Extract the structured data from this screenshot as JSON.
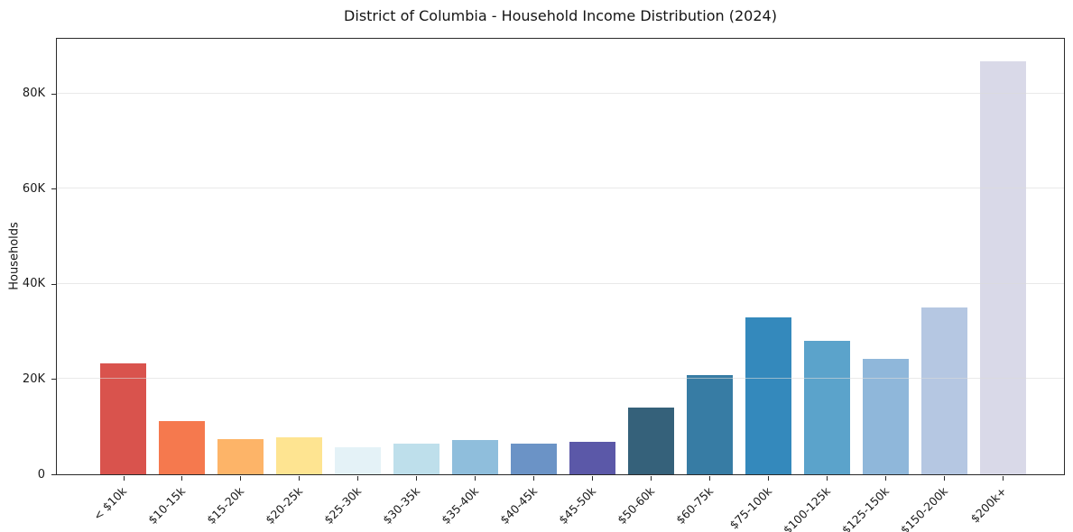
{
  "chart_data": {
    "type": "bar",
    "title": "District of Columbia - Household Income Distribution (2024)",
    "xlabel": "",
    "ylabel": "Households",
    "categories": [
      "< $10k",
      "$10-15k",
      "$15-20k",
      "$20-25k",
      "$25-30k",
      "$30-35k",
      "$35-40k",
      "$40-45k",
      "$45-50k",
      "$50-60k",
      "$60-75k",
      "$75-100k",
      "$100-125k",
      "$125-150k",
      "$150-200k",
      "$200k+"
    ],
    "values": [
      23300,
      11100,
      7400,
      7800,
      5700,
      6400,
      7200,
      6450,
      6800,
      14000,
      20800,
      33000,
      28100,
      24200,
      35000,
      86800
    ],
    "bar_colors": [
      "#D9534D",
      "#F5794E",
      "#FDB468",
      "#FEE491",
      "#E4F2F7",
      "#BEDFEB",
      "#8FBEDC",
      "#6B93C6",
      "#5B58A8",
      "#35617A",
      "#377CA4",
      "#3489BC",
      "#5BA3CB",
      "#8FB7DA",
      "#B5C7E2",
      "#D9D9E8"
    ],
    "ylim": [
      0,
      91500
    ],
    "yticks": [
      {
        "value": 0,
        "label": "0"
      },
      {
        "value": 20000,
        "label": "20K"
      },
      {
        "value": 40000,
        "label": "40K"
      },
      {
        "value": 60000,
        "label": "60K"
      },
      {
        "value": 80000,
        "label": "80K"
      }
    ],
    "grid": "horizontal-light",
    "legend_position": "none",
    "background": "#ffffff",
    "axis_color": "#2a2a2a",
    "text_color": "#1a1a1a"
  }
}
